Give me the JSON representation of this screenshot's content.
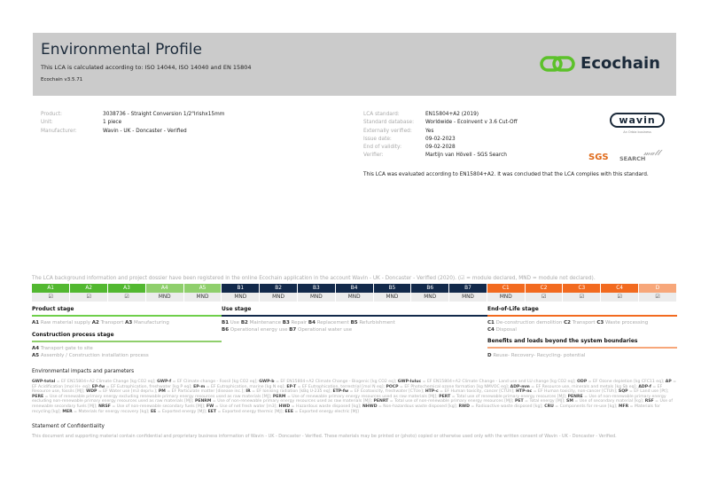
{
  "header": {
    "title": "Environmental Profile",
    "subtitle": "This LCA is calculated according to: ISO 14044, ISO 14040 and EN 15804",
    "version": "Ecochain v3.5.71",
    "logo": "Ecochain",
    "logo_color": "#5cc12a"
  },
  "product_info": [
    {
      "label": "Product:",
      "value": "3038736 - Straight Conversion 1/2\"Irishx15mm"
    },
    {
      "label": "Unit:",
      "value": "1 piece"
    },
    {
      "label": "Manufacturer:",
      "value": "Wavin - UK - Doncaster - Verified"
    }
  ],
  "lca_info": [
    {
      "label": "LCA standard:",
      "value": "EN15804+A2 (2019)"
    },
    {
      "label": "Standard database:",
      "value": "Worldwide - Ecoinvent v 3.6 Cut-Off"
    },
    {
      "label": "Externally verified:",
      "value": "Yes"
    },
    {
      "label": "Issue date:",
      "value": "09-02-2023"
    },
    {
      "label": "End of validity:",
      "value": "09-02-2028"
    },
    {
      "label": "Verifier:",
      "value": "Martijn van Hövell - SGS Search"
    }
  ],
  "logos": {
    "wavin": "wavin",
    "orbia": "An Orbia business",
    "sgs": "SGS",
    "search": "SEARCH",
    "signature": "M.Hövell"
  },
  "conclusion": "This LCA was evaluated according to EN15804+A2. It was concluded that the LCA complies with this standard.",
  "registration": "The LCA background information and project dossier have been registered in the online Ecochain application in the account Wavin - UK - Doncaster - Verified (2020). (☑ = module declared, MND = module not declared).",
  "modules": [
    {
      "code": "A1",
      "value": "☑",
      "color": "#52b830"
    },
    {
      "code": "A2",
      "value": "☑",
      "color": "#52b830"
    },
    {
      "code": "A3",
      "value": "☑",
      "color": "#52b830"
    },
    {
      "code": "A4",
      "value": "MND",
      "color": "#8fcf6c"
    },
    {
      "code": "A5",
      "value": "MND",
      "color": "#8fcf6c"
    },
    {
      "code": "B1",
      "value": "MND",
      "color": "#12294a"
    },
    {
      "code": "B2",
      "value": "MND",
      "color": "#12294a"
    },
    {
      "code": "B3",
      "value": "MND",
      "color": "#12294a"
    },
    {
      "code": "B4",
      "value": "MND",
      "color": "#12294a"
    },
    {
      "code": "B5",
      "value": "MND",
      "color": "#12294a"
    },
    {
      "code": "B6",
      "value": "MND",
      "color": "#12294a"
    },
    {
      "code": "B7",
      "value": "MND",
      "color": "#12294a"
    },
    {
      "code": "C1",
      "value": "MND",
      "color": "#f26a1f"
    },
    {
      "code": "C2",
      "value": "☑",
      "color": "#f26a1f"
    },
    {
      "code": "C3",
      "value": "☑",
      "color": "#f26a1f"
    },
    {
      "code": "C4",
      "value": "☑",
      "color": "#f26a1f"
    },
    {
      "code": "D",
      "value": "☑",
      "color": "#f7a77a"
    }
  ],
  "stages": {
    "product": {
      "title": "Product stage",
      "items": [
        [
          "A1",
          "Raw material supply"
        ],
        [
          "A2",
          "Transport"
        ],
        [
          "A3",
          "Manufacturing"
        ]
      ]
    },
    "construction": {
      "title": "Construction process stage",
      "items": [
        [
          "A4",
          "Transport gate to site"
        ],
        [
          "A5",
          "Assembly / Construction installation process"
        ]
      ]
    },
    "use": {
      "title": "Use stage",
      "items1": [
        [
          "B1",
          "Use"
        ],
        [
          "B2",
          "Maintenance"
        ],
        [
          "B3",
          "Repair"
        ],
        [
          "B4",
          "Replacement"
        ],
        [
          "B5",
          "Refurbishment"
        ]
      ],
      "items2": [
        [
          "B6",
          "Operational energy use"
        ],
        [
          "B7",
          "Operational water use"
        ]
      ]
    },
    "eol": {
      "title": "End-of-Life stage",
      "items1": [
        [
          "C1",
          "De-construction demolition"
        ],
        [
          "C2",
          "Transport"
        ],
        [
          "C3",
          "Waste processing"
        ]
      ],
      "items2": [
        [
          "C4",
          "Disposal"
        ]
      ]
    },
    "benefits": {
      "title": "Benefits and loads beyond the system boundaries",
      "items": [
        [
          "D",
          "Reuse- Recovery- Recycling- potential"
        ]
      ]
    }
  },
  "impacts": {
    "title": "Environmental impacts and parameters",
    "items": [
      [
        "GWP-total",
        "EF EN15804+A2 Climate Change [kg CO2 eq]"
      ],
      [
        "GWP-f",
        "EF Climate change - Fossil [kg CO2 eq]"
      ],
      [
        "GWP-b",
        "EF EN15804+A2 Climate Change - Biogenic [kg CO2 eq]"
      ],
      [
        "GWP-luluc",
        "EF EN15804+A2 Climate Change - Land use and LU change [kg CO2 eq]"
      ],
      [
        "ODP",
        "EF Ozone depletion [kg CFC11 eq]"
      ],
      [
        "AP",
        "EF Acidification [mol H+ eq]"
      ],
      [
        "EP-fw",
        "EF Eutrophication, freshwater [kg P eq]"
      ],
      [
        "EP-m",
        "EF Eutrophication, marine [kg N eq]"
      ],
      [
        "EP-T",
        "EF Eutrophication, terrestrial [mol N eq]"
      ],
      [
        "POCP",
        "EF Photochemical ozone formation [kg NMVOC eq]"
      ],
      [
        "ADP-mm",
        "EF Resource use, minerals and metals [kg Sb eq]"
      ],
      [
        "ADP-f",
        "EF Resource use, fossils [MJ]"
      ],
      [
        "WDP",
        "EF Water use [m3 depriv.]"
      ],
      [
        "PM",
        "EF Particulate matter [disease inc.]"
      ],
      [
        "IR",
        "EF Ionising radiation [kBq U-235 eq]"
      ],
      [
        "ETP-fw",
        "EF Ecotoxicity, freshwater [CTUe]"
      ],
      [
        "HTP-c",
        "EF Human toxicity, cancer [CTUh]"
      ],
      [
        "HTP-nc",
        "EF Human toxicity, non-cancer [CTUh]"
      ],
      [
        "SQP",
        "EF Land use [Pt]"
      ],
      [
        "PERE",
        "Use of renewable primary energy excluding renewable primary energy resources used as raw materials [MJ]"
      ],
      [
        "PERM",
        "Use of renewable primary energy resources used as raw materials [MJ]"
      ],
      [
        "PERT",
        "Total use of renewable primary energy resources [MJ]"
      ],
      [
        "PENRE",
        "Use of non-renewable primary energy excluding non-renewable primary energy resources used as raw materials [MJ]"
      ],
      [
        "PENRM",
        "Use of non-renewable primary energy resources used as raw materials [MJ]"
      ],
      [
        "PENRT",
        "Total use of non-renewable primary energy resources [MJ]"
      ],
      [
        "PET",
        "Total energy [MJ]"
      ],
      [
        "SM",
        "Use of secondary material [kg]"
      ],
      [
        "RSF",
        "Use of renewable secondary fuels [MJ]"
      ],
      [
        "NRSF",
        "Use of non-renewable secondary fuels [MJ]"
      ],
      [
        "FW",
        "Use of net fresh water [m3]"
      ],
      [
        "HWD",
        "Hazardous waste disposed [kg]"
      ],
      [
        "NHWD",
        "Non-hazardous waste disposed [kg]"
      ],
      [
        "RWD",
        "Radioactive waste disposed [kg]"
      ],
      [
        "CRU",
        "Components for re-use [kg]"
      ],
      [
        "MFR",
        "Materials for recycling [kg]"
      ],
      [
        "MER",
        "Materials for energy recovery [kg]"
      ],
      [
        "EE",
        "Exported energy [MJ]"
      ],
      [
        "EET",
        "Exported energy thermic [MJ]"
      ],
      [
        "EEE",
        "Exported energy electric [MJ]"
      ]
    ]
  },
  "confidentiality": {
    "title": "Statement of Confidentiality",
    "text": "This document and supporting material contain confidential and proprietary business information of Wavin - UK - Doncaster - Verified. These materials may be printed or (photo) copied or otherwise used only with the written consent of Wavin - UK - Doncaster - Verified."
  }
}
